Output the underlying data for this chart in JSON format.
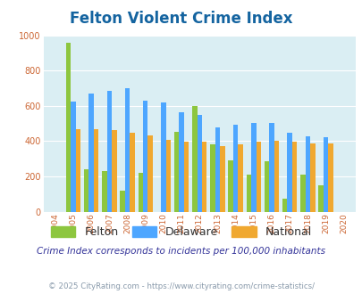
{
  "title": "Felton Violent Crime Index",
  "years": [
    2004,
    2005,
    2006,
    2007,
    2008,
    2009,
    2010,
    2011,
    2012,
    2013,
    2014,
    2015,
    2016,
    2017,
    2018,
    2019,
    2020
  ],
  "felton": [
    null,
    960,
    240,
    230,
    120,
    220,
    null,
    455,
    600,
    380,
    290,
    210,
    285,
    75,
    210,
    150,
    null
  ],
  "delaware": [
    null,
    625,
    670,
    685,
    700,
    630,
    620,
    565,
    550,
    480,
    495,
    505,
    505,
    450,
    425,
    420,
    null
  ],
  "national": [
    null,
    470,
    470,
    465,
    450,
    430,
    408,
    395,
    395,
    370,
    380,
    395,
    400,
    398,
    385,
    385,
    null
  ],
  "felton_color": "#8dc63f",
  "delaware_color": "#4da6ff",
  "national_color": "#f0a830",
  "bg_color": "#daeef3",
  "ylim": [
    0,
    1000
  ],
  "yticks": [
    0,
    200,
    400,
    600,
    800,
    1000
  ],
  "subtitle": "Crime Index corresponds to incidents per 100,000 inhabitants",
  "footer": "© 2025 CityRating.com - https://www.cityrating.com/crime-statistics/",
  "legend_labels": [
    "Felton",
    "Delaware",
    "National"
  ],
  "title_color": "#1464a0",
  "tick_color": "#cc6633",
  "subtitle_color": "#333399",
  "footer_color": "#8899aa"
}
